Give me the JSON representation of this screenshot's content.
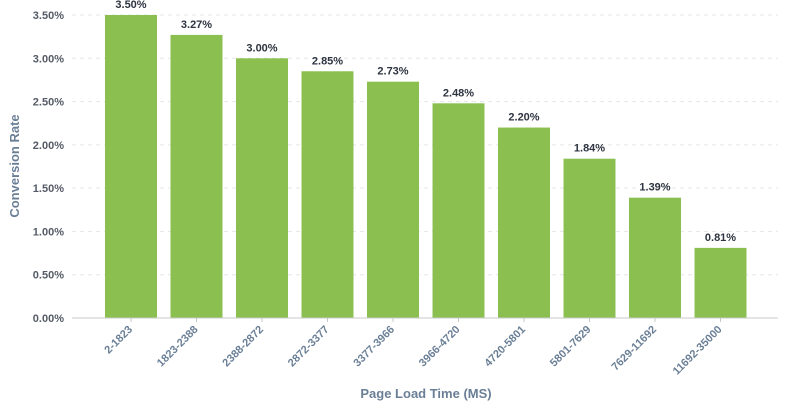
{
  "chart_data": {
    "type": "bar",
    "title": "",
    "xlabel": "Page Load Time (MS)",
    "ylabel": "Conversion Rate",
    "categories": [
      "2-1823",
      "1823-2388",
      "2388-2872",
      "2872-3377",
      "3377-3966",
      "3966-4720",
      "4720-5801",
      "5801-7629",
      "7629-11692",
      "11692-35000"
    ],
    "values": [
      3.5,
      3.27,
      3.0,
      2.85,
      2.73,
      2.48,
      2.2,
      1.84,
      1.39,
      0.81
    ],
    "data_labels": [
      "3.50%",
      "3.27%",
      "3.00%",
      "2.85%",
      "2.73%",
      "2.48%",
      "2.20%",
      "1.84%",
      "1.39%",
      "0.81%"
    ],
    "ylim": [
      0,
      3.5
    ],
    "yticks": [
      0,
      0.5,
      1.0,
      1.5,
      2.0,
      2.5,
      3.0,
      3.5
    ],
    "ytick_labels": [
      "0.00%",
      "0.50%",
      "1.00%",
      "1.50%",
      "2.00%",
      "2.50%",
      "3.00%",
      "3.50%"
    ],
    "grid": true,
    "legend": "none",
    "bar_color": "#8bc051"
  }
}
